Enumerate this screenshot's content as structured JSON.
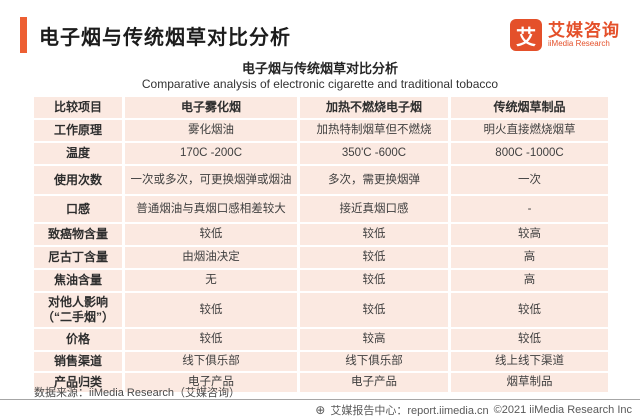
{
  "header": {
    "title": "电子烟与传统烟草对比分析",
    "logo": {
      "icon_char": "艾",
      "name_cn": "艾媒咨询",
      "name_en": "iiMedia Research"
    }
  },
  "chart_data": {
    "type": "table",
    "title": "电子烟与传统烟草对比分析",
    "subtitle": "Comparative analysis of electronic cigarette and traditional tobacco",
    "columns": [
      "比较项目",
      "电子雾化烟",
      "加热不燃烧电子烟",
      "传统烟草制品"
    ],
    "rows": [
      [
        "工作原理",
        "雾化烟油",
        "加热特制烟草但不燃烧",
        "明火直接燃烧烟草"
      ],
      [
        "温度",
        "170C -200C",
        "350'C -600C",
        "800C -1000C"
      ],
      [
        "使用次数",
        "一次或多次，可更换烟弹或烟油",
        "多次，需更换烟弹",
        "一次"
      ],
      [
        "口感",
        "普通烟油与真烟口感相差较大",
        "接近真烟口感",
        "-"
      ],
      [
        "致癌物含量",
        "较低",
        "较低",
        "较高"
      ],
      [
        "尼古丁含量",
        "由烟油决定",
        "较低",
        "高"
      ],
      [
        "焦油含量",
        "无",
        "较低",
        "高"
      ],
      [
        "对他人影响\n（“二手烟”）",
        "较低",
        "较低",
        "较低"
      ],
      [
        "价格",
        "较低",
        "较高",
        "较低"
      ],
      [
        "销售渠道",
        "线下俱乐部",
        "线下俱乐部",
        "线上线下渠道"
      ],
      [
        "产品归类",
        "电子产品",
        "电子产品",
        "烟草制品"
      ]
    ],
    "layout": {
      "grid": "off",
      "header_bold": true
    }
  },
  "footer": {
    "source": "数据来源：iiMedia Research（艾媒咨询）",
    "report_center_icon": "⊕",
    "report_center": "艾媒报告中心：report.iimedia.cn",
    "copyright": "©2021  iiMedia Research Inc"
  },
  "colors": {
    "accent_bar": "#ed5f33",
    "logo_orange": "#e4502a",
    "cell_background": "#fbe9e1",
    "body_text": "#3f3f3f"
  }
}
